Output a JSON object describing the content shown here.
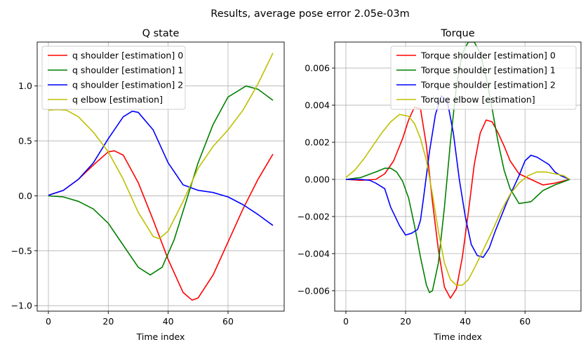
{
  "figure": {
    "suptitle": "Results, average pose error 2.05e-03m"
  },
  "chart_data": [
    {
      "type": "line",
      "title": "Q state",
      "xlabel": "Time index",
      "ylabel": "",
      "xlim": [
        -3.75,
        78.75
      ],
      "ylim": [
        -1.05,
        1.4
      ],
      "xticks": [
        0,
        20,
        40,
        60
      ],
      "yticks": [
        -1.0,
        -0.5,
        0.0,
        0.5,
        1.0
      ],
      "ytick_labels": [
        "−1.0",
        "−0.5",
        "0.0",
        "0.5",
        "1.0"
      ],
      "grid": true,
      "legend_position": "upper-left",
      "series": [
        {
          "name": "q shoulder [estimation] 0",
          "color": "#ff0000",
          "x": [
            0,
            5,
            10,
            15,
            20,
            22,
            25,
            30,
            35,
            40,
            45,
            48,
            50,
            55,
            60,
            65,
            70,
            75
          ],
          "y": [
            0.005,
            0.05,
            0.15,
            0.28,
            0.4,
            0.41,
            0.37,
            0.12,
            -0.22,
            -0.58,
            -0.88,
            -0.95,
            -0.93,
            -0.72,
            -0.42,
            -0.12,
            0.15,
            0.38
          ]
        },
        {
          "name": "q shoulder [estimation] 1",
          "color": "#008000",
          "x": [
            0,
            5,
            10,
            15,
            20,
            25,
            30,
            34,
            38,
            42,
            46,
            50,
            55,
            60,
            66,
            70,
            75
          ],
          "y": [
            0.0,
            -0.01,
            -0.05,
            -0.12,
            -0.25,
            -0.45,
            -0.65,
            -0.72,
            -0.65,
            -0.4,
            -0.05,
            0.3,
            0.65,
            0.9,
            1.0,
            0.97,
            0.87
          ]
        },
        {
          "name": "q shoulder [estimation] 2",
          "color": "#0000ff",
          "x": [
            0,
            5,
            10,
            15,
            20,
            25,
            28,
            30,
            35,
            40,
            45,
            50,
            55,
            60,
            65,
            70,
            75
          ],
          "y": [
            0.005,
            0.05,
            0.15,
            0.3,
            0.52,
            0.72,
            0.77,
            0.76,
            0.6,
            0.3,
            0.1,
            0.05,
            0.03,
            -0.01,
            -0.08,
            -0.17,
            -0.27
          ]
        },
        {
          "name": "q elbow [estimation]",
          "color": "#bfbf00",
          "x": [
            0,
            3,
            6,
            10,
            15,
            20,
            25,
            30,
            35,
            37,
            40,
            45,
            50,
            55,
            60,
            65,
            70,
            75
          ],
          "y": [
            0.78,
            0.785,
            0.78,
            0.72,
            0.58,
            0.4,
            0.15,
            -0.15,
            -0.37,
            -0.39,
            -0.32,
            -0.05,
            0.25,
            0.45,
            0.6,
            0.78,
            1.02,
            1.3
          ]
        }
      ]
    },
    {
      "type": "line",
      "title": "Torque",
      "xlabel": "Time index",
      "ylabel": "",
      "xlim": [
        -3.75,
        78.75
      ],
      "ylim": [
        -0.0071,
        0.0074
      ],
      "xticks": [
        0,
        20,
        40,
        60
      ],
      "yticks": [
        -0.006,
        -0.004,
        -0.002,
        0.0,
        0.002,
        0.004,
        0.006
      ],
      "ytick_labels": [
        "−0.006",
        "−0.004",
        "−0.002",
        "0.000",
        "0.002",
        "0.004",
        "0.006"
      ],
      "grid": true,
      "legend_position": "upper-right",
      "series": [
        {
          "name": "Torque shoulder [estimation] 0",
          "color": "#ff0000",
          "x": [
            0,
            5,
            10,
            13,
            16,
            19,
            21,
            23,
            25,
            27,
            29,
            31,
            33,
            35,
            37,
            39,
            41,
            43,
            45,
            47,
            49,
            51,
            53,
            55,
            58,
            62,
            66,
            70,
            75
          ],
          "y": [
            0.0,
            -5e-05,
            0.0,
            0.0003,
            0.001,
            0.0022,
            0.0032,
            0.0039,
            0.0038,
            0.0018,
            -0.0012,
            -0.0038,
            -0.0058,
            -0.0064,
            -0.0059,
            -0.0042,
            -0.0018,
            0.0008,
            0.0025,
            0.0032,
            0.0031,
            0.0025,
            0.0018,
            0.001,
            0.0003,
            0.0,
            -0.0003,
            -0.0002,
            0.0
          ]
        },
        {
          "name": "Torque shoulder [estimation] 1",
          "color": "#008000",
          "x": [
            0,
            5,
            10,
            13,
            15,
            17,
            19,
            21,
            23,
            25,
            27,
            28,
            29,
            31,
            33,
            35,
            37,
            39,
            41,
            43,
            45,
            47,
            49,
            51,
            53,
            55,
            58,
            62,
            66,
            70,
            75
          ],
          "y": [
            0.0,
            0.0001,
            0.0004,
            0.0006,
            0.0006,
            0.0004,
            -0.0001,
            -0.001,
            -0.0025,
            -0.0042,
            -0.0057,
            -0.0061,
            -0.006,
            -0.0045,
            -0.0015,
            0.002,
            0.005,
            0.0068,
            0.0074,
            0.0074,
            0.0068,
            0.0055,
            0.0038,
            0.002,
            0.0005,
            -0.0005,
            -0.0013,
            -0.0012,
            -0.0006,
            -0.0003,
            0.0
          ]
        },
        {
          "name": "Torque shoulder [estimation] 2",
          "color": "#0000ff",
          "x": [
            0,
            5,
            8,
            10,
            13,
            15,
            18,
            20,
            22,
            24,
            25,
            26,
            28,
            30,
            32,
            34,
            36,
            38,
            40,
            42,
            44,
            46,
            48,
            50,
            52,
            54,
            56,
            58,
            60,
            62,
            64,
            66,
            68,
            70,
            72,
            75
          ],
          "y": [
            0.0,
            0.0,
            -5e-05,
            -0.0002,
            -0.0005,
            -0.0015,
            -0.0025,
            -0.003,
            -0.0029,
            -0.0027,
            -0.0022,
            -0.001,
            0.0015,
            0.0035,
            0.0045,
            0.0042,
            0.0025,
            0.0,
            -0.002,
            -0.0035,
            -0.0041,
            -0.0042,
            -0.0037,
            -0.0028,
            -0.002,
            -0.0012,
            -0.0005,
            0.0002,
            0.001,
            0.0013,
            0.0012,
            0.001,
            0.0008,
            0.0004,
            0.0002,
            0.0
          ]
        },
        {
          "name": "Torque elbow [estimation]",
          "color": "#bfbf00",
          "x": [
            0,
            3,
            6,
            9,
            12,
            15,
            18,
            21,
            23,
            25,
            27,
            29,
            31,
            33,
            35,
            37,
            39,
            41,
            43,
            46,
            49,
            52,
            55,
            58,
            61,
            64,
            67,
            70,
            73,
            75
          ],
          "y": [
            0.0001,
            0.0005,
            0.0011,
            0.0018,
            0.0025,
            0.0031,
            0.0035,
            0.0034,
            0.003,
            0.0022,
            0.001,
            -0.0008,
            -0.0028,
            -0.0045,
            -0.0054,
            -0.0057,
            -0.0057,
            -0.0054,
            -0.0048,
            -0.0038,
            -0.0028,
            -0.0017,
            -0.0008,
            -0.0002,
            0.0002,
            0.0004,
            0.0004,
            0.0003,
            0.0002,
            0.0
          ]
        }
      ]
    }
  ]
}
